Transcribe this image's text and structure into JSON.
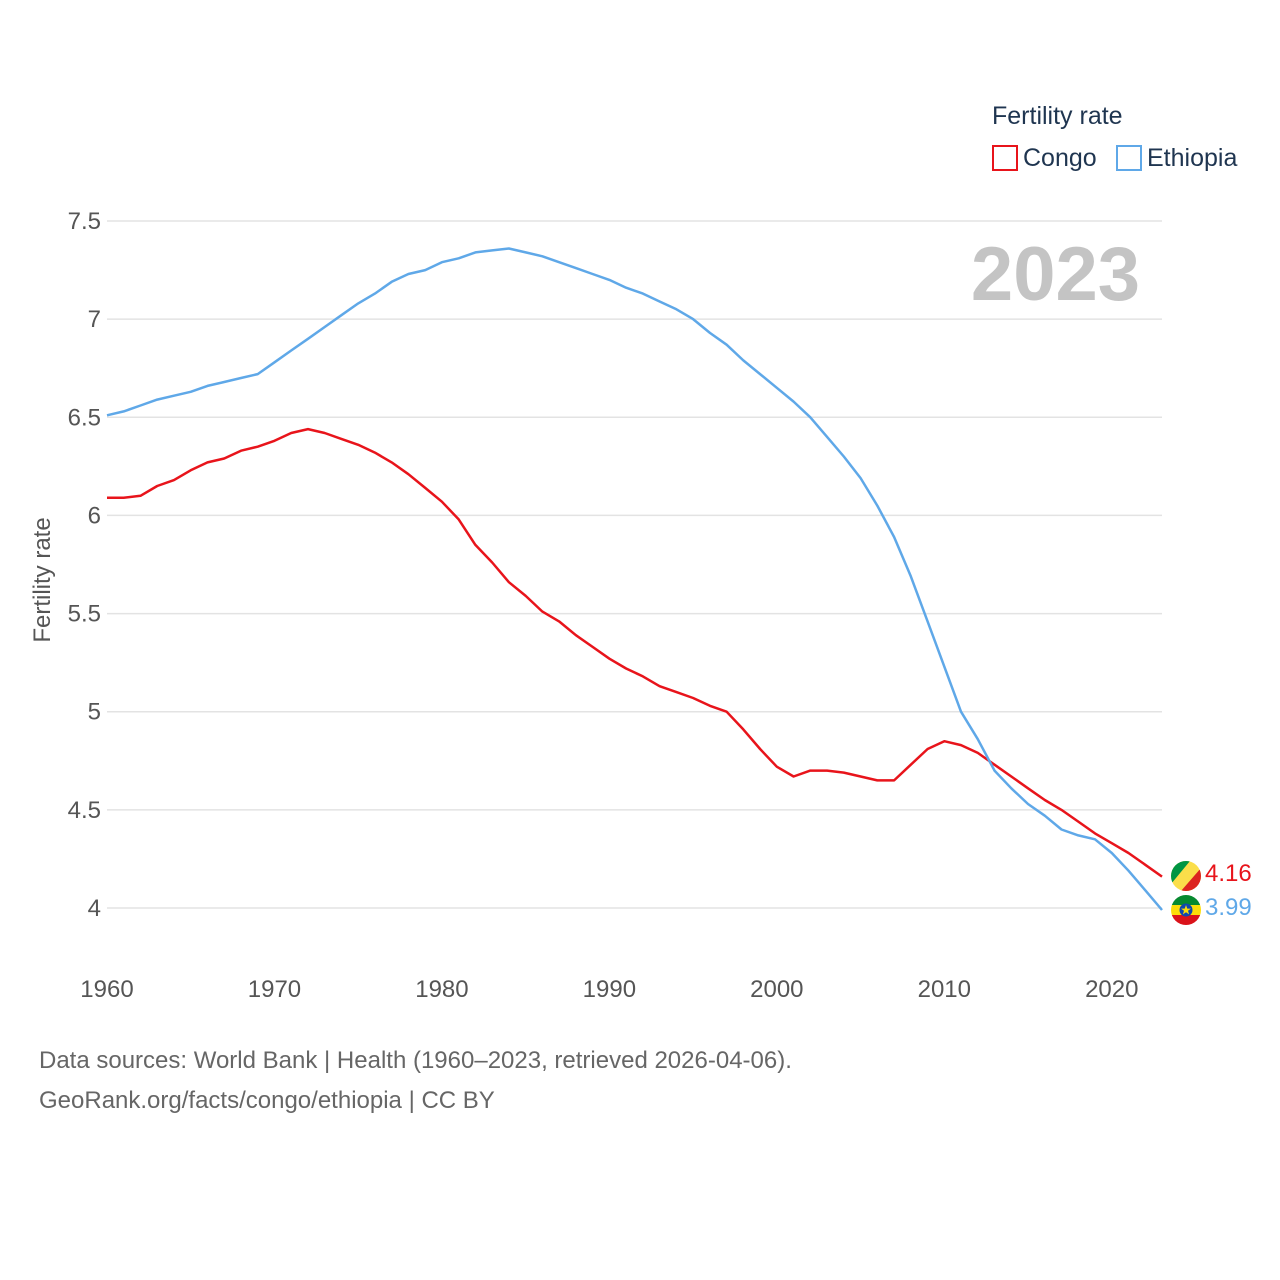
{
  "chart_data": {
    "type": "line",
    "title": "",
    "ylabel": "Fertility rate",
    "xlabel": "",
    "xlim": [
      1960,
      2023
    ],
    "ylim": [
      4,
      7.5
    ],
    "x_ticks": [
      1960,
      1970,
      1980,
      1990,
      2000,
      2010,
      2020
    ],
    "x_tick_labels": [
      "1960",
      "1970",
      "1980",
      "1990",
      "2000",
      "2010",
      "2020"
    ],
    "y_ticks": [
      4,
      4.5,
      5,
      5.5,
      6,
      6.5,
      7,
      7.5
    ],
    "y_tick_labels": [
      "4",
      "4.5",
      "5",
      "5.5",
      "6",
      "6.5",
      "7",
      "7.5"
    ],
    "grid": true,
    "year_watermark": "2023",
    "legend": {
      "title": "Fertility rate",
      "position": "top-right",
      "entries": [
        "Congo",
        "Ethiopia"
      ]
    },
    "x": [
      1960,
      1961,
      1962,
      1963,
      1964,
      1965,
      1966,
      1967,
      1968,
      1969,
      1970,
      1971,
      1972,
      1973,
      1974,
      1975,
      1976,
      1977,
      1978,
      1979,
      1980,
      1981,
      1982,
      1983,
      1984,
      1985,
      1986,
      1987,
      1988,
      1989,
      1990,
      1991,
      1992,
      1993,
      1994,
      1995,
      1996,
      1997,
      1998,
      1999,
      2000,
      2001,
      2002,
      2003,
      2004,
      2005,
      2006,
      2007,
      2008,
      2009,
      2010,
      2011,
      2012,
      2013,
      2014,
      2015,
      2016,
      2017,
      2018,
      2019,
      2020,
      2021,
      2022,
      2023
    ],
    "series": [
      {
        "name": "Congo",
        "color": "#e8141b",
        "values": [
          6.09,
          6.09,
          6.1,
          6.15,
          6.18,
          6.23,
          6.27,
          6.29,
          6.33,
          6.35,
          6.38,
          6.42,
          6.44,
          6.42,
          6.39,
          6.36,
          6.32,
          6.27,
          6.21,
          6.14,
          6.07,
          5.98,
          5.85,
          5.76,
          5.66,
          5.59,
          5.51,
          5.46,
          5.39,
          5.33,
          5.27,
          5.22,
          5.18,
          5.13,
          5.1,
          5.07,
          5.03,
          5.0,
          4.91,
          4.81,
          4.72,
          4.67,
          4.7,
          4.7,
          4.69,
          4.67,
          4.65,
          4.65,
          4.73,
          4.81,
          4.85,
          4.83,
          4.79,
          4.73,
          4.67,
          4.61,
          4.55,
          4.5,
          4.44,
          4.38,
          4.33,
          4.28,
          4.22,
          4.16
        ],
        "end_label": "4.16"
      },
      {
        "name": "Ethiopia",
        "color": "#5fa8e8",
        "values": [
          6.51,
          6.53,
          6.56,
          6.59,
          6.61,
          6.63,
          6.66,
          6.68,
          6.7,
          6.72,
          6.78,
          6.84,
          6.9,
          6.96,
          7.02,
          7.08,
          7.13,
          7.19,
          7.23,
          7.25,
          7.29,
          7.31,
          7.34,
          7.35,
          7.36,
          7.34,
          7.32,
          7.29,
          7.26,
          7.23,
          7.2,
          7.16,
          7.13,
          7.09,
          7.05,
          7.0,
          6.93,
          6.87,
          6.79,
          6.72,
          6.65,
          6.58,
          6.5,
          6.4,
          6.3,
          6.19,
          6.05,
          5.89,
          5.69,
          5.46,
          5.23,
          5.0,
          4.86,
          4.7,
          4.61,
          4.53,
          4.47,
          4.4,
          4.37,
          4.35,
          4.28,
          4.19,
          4.09,
          3.99
        ],
        "end_label": "3.99"
      }
    ]
  },
  "footer": {
    "source_line": "Data sources: World Bank | Health (1960–2023, retrieved 2026-04-06).",
    "attribution_line": "GeoRank.org/facts/congo/ethiopia | CC BY"
  }
}
